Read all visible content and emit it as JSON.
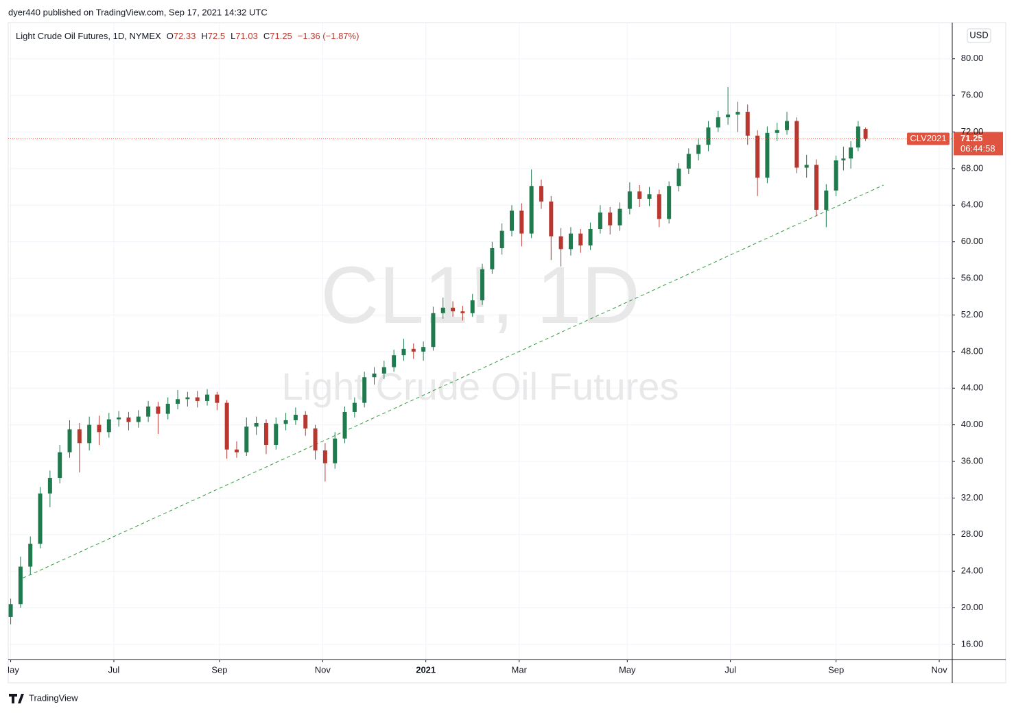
{
  "header": {
    "publisher": "dyer440 published on TradingView.com, Sep 17, 2021 14:32 UTC"
  },
  "footer": {
    "brand": "TradingView"
  },
  "chart_data": {
    "type": "candlestick",
    "title": "Light Crude Oil Futures, 1D, NYMEX",
    "ohlc_prefixes": [
      "O",
      "H",
      "L",
      "C"
    ],
    "change": "−1.36 (−1.87%)",
    "currency": "USD",
    "watermark_symbol": "CL1!, 1D",
    "watermark_name": "Light Crude Oil Futures",
    "price_tag_symbol": "CLV2021",
    "countdown": "06:44:58",
    "up_color": "#1f7a4d",
    "down_color": "#b8372e",
    "grid": true,
    "x": [
      0,
      4,
      8,
      12,
      16,
      20,
      24,
      28,
      32,
      36,
      40,
      44,
      48,
      52,
      56,
      60,
      64,
      68,
      72,
      76,
      80,
      84,
      88,
      92,
      96,
      100,
      104,
      108,
      112,
      116,
      120,
      124,
      128,
      132,
      136,
      140,
      144,
      148,
      152,
      156,
      160,
      164,
      168,
      172,
      176,
      180,
      184,
      188,
      192,
      196,
      200,
      204,
      208,
      212,
      216,
      220,
      224,
      228,
      232,
      236,
      240,
      244,
      248,
      252,
      256,
      260,
      264,
      268,
      272,
      276,
      280,
      284,
      288,
      292,
      296,
      300,
      304,
      308,
      312,
      316,
      320,
      324,
      328,
      332,
      336,
      339,
      342,
      345,
      348
    ],
    "open": [
      19.0,
      20.4,
      24.5,
      27.0,
      32.5,
      34.2,
      37.0,
      39.5,
      38.0,
      40.0,
      39.2,
      40.6,
      40.8,
      40.3,
      40.9,
      42.0,
      41.2,
      42.3,
      42.8,
      43.0,
      42.6,
      43.3,
      42.4,
      37.3,
      37.0,
      39.8,
      40.2,
      37.8,
      40.1,
      40.5,
      41.1,
      39.6,
      37.2,
      35.8,
      38.5,
      41.4,
      42.4,
      45.2,
      45.6,
      46.3,
      47.6,
      48.3,
      48.0,
      48.5,
      52.2,
      52.8,
      52.4,
      52.2,
      53.6,
      57.0,
      59.3,
      61.2,
      63.4,
      60.9,
      66.1,
      64.4,
      60.6,
      59.2,
      60.9,
      59.6,
      61.4,
      63.2,
      61.8,
      63.6,
      65.5,
      64.7,
      65.2,
      62.5,
      66.1,
      68.0,
      69.6,
      70.6,
      72.5,
      73.6,
      73.9,
      74.2,
      71.6,
      67.0,
      71.9,
      72.2,
      73.2,
      68.1,
      68.4,
      63.5,
      65.6,
      68.9,
      69.1,
      70.3,
      72.33
    ],
    "high": [
      21.0,
      25.6,
      27.8,
      33.2,
      35.0,
      37.8,
      40.5,
      40.2,
      40.9,
      41.0,
      41.3,
      41.5,
      41.4,
      41.6,
      42.6,
      42.5,
      43.0,
      43.8,
      43.6,
      43.7,
      43.9,
      43.6,
      42.7,
      38.2,
      40.8,
      40.9,
      40.6,
      40.8,
      41.3,
      41.9,
      41.5,
      40.0,
      38.0,
      39.2,
      42.0,
      43.0,
      45.8,
      46.3,
      47.0,
      48.2,
      49.4,
      48.9,
      49.1,
      52.9,
      53.9,
      53.5,
      53.0,
      54.3,
      57.6,
      60.0,
      62.0,
      64.0,
      64.2,
      67.9,
      66.8,
      65.0,
      61.5,
      61.6,
      61.4,
      62.1,
      64.0,
      63.8,
      64.3,
      66.5,
      66.2,
      66.0,
      65.7,
      66.6,
      68.6,
      70.2,
      71.3,
      73.2,
      74.3,
      76.9,
      75.3,
      75.0,
      72.2,
      72.6,
      73.0,
      74.2,
      73.6,
      69.5,
      69.0,
      66.3,
      69.4,
      70.4,
      71.0,
      73.2,
      72.5
    ],
    "low": [
      18.2,
      20.0,
      23.6,
      26.5,
      31.0,
      33.6,
      36.4,
      34.8,
      37.2,
      37.8,
      38.6,
      39.8,
      39.4,
      39.7,
      40.3,
      39.0,
      40.6,
      41.7,
      42.0,
      41.9,
      42.1,
      41.6,
      36.3,
      36.4,
      36.6,
      38.9,
      36.8,
      37.3,
      39.4,
      40.0,
      38.8,
      36.2,
      33.8,
      35.2,
      38.0,
      40.8,
      41.9,
      44.4,
      45.0,
      45.8,
      47.0,
      47.2,
      47.0,
      48.1,
      51.6,
      51.8,
      51.4,
      51.8,
      53.1,
      56.5,
      58.6,
      60.6,
      59.5,
      60.4,
      63.6,
      58.0,
      57.3,
      58.5,
      58.8,
      59.1,
      60.9,
      60.8,
      61.2,
      63.0,
      63.8,
      63.9,
      61.6,
      62.0,
      65.5,
      67.4,
      68.9,
      69.9,
      72.0,
      72.8,
      72.0,
      70.6,
      65.0,
      66.4,
      71.0,
      71.7,
      67.5,
      67.0,
      62.8,
      61.6,
      65.0,
      67.8,
      68.0,
      69.9,
      71.03
    ],
    "close": [
      20.4,
      24.5,
      27.0,
      32.5,
      34.2,
      37.0,
      39.5,
      38.0,
      40.0,
      39.2,
      40.6,
      40.8,
      40.3,
      40.9,
      42.0,
      41.2,
      42.3,
      42.8,
      43.0,
      42.6,
      43.3,
      42.4,
      37.3,
      37.0,
      39.8,
      40.2,
      37.8,
      40.1,
      40.5,
      41.1,
      39.6,
      37.2,
      35.8,
      38.5,
      41.4,
      42.4,
      45.2,
      45.6,
      46.3,
      47.6,
      48.3,
      48.0,
      48.5,
      52.2,
      52.8,
      52.4,
      52.2,
      53.6,
      57.0,
      59.3,
      61.2,
      63.4,
      60.9,
      66.1,
      64.4,
      60.6,
      59.2,
      60.9,
      59.6,
      61.4,
      63.2,
      61.8,
      63.6,
      65.5,
      64.7,
      65.2,
      62.5,
      66.1,
      68.0,
      69.6,
      70.6,
      72.5,
      73.6,
      73.9,
      74.2,
      71.6,
      67.0,
      71.9,
      72.2,
      73.2,
      68.1,
      68.4,
      63.5,
      65.6,
      68.9,
      69.1,
      70.3,
      72.6,
      71.25
    ],
    "trendline": {
      "x": [
        5,
        355.3
      ],
      "values": [
        23.25,
        66.2
      ],
      "color": "#2e9a3a"
    },
    "xlim": [
      -1,
      383.3
    ],
    "ylim": [
      14.35,
      83.8
    ],
    "xticks": [
      {
        "value": 0,
        "label": "May"
      },
      {
        "value": 42,
        "label": "Jul"
      },
      {
        "value": 85,
        "label": "Sep"
      },
      {
        "value": 127,
        "label": "Nov"
      },
      {
        "value": 169,
        "label": "2021"
      },
      {
        "value": 207,
        "label": "Mar"
      },
      {
        "value": 251,
        "label": "May"
      },
      {
        "value": 293,
        "label": "Jul"
      },
      {
        "value": 336,
        "label": "Sep"
      },
      {
        "value": 378,
        "label": "Nov"
      }
    ],
    "yticks": [
      {
        "value": 16,
        "label": "16.00"
      },
      {
        "value": 20,
        "label": "20.00"
      },
      {
        "value": 24,
        "label": "24.00"
      },
      {
        "value": 28,
        "label": "28.00"
      },
      {
        "value": 32,
        "label": "32.00"
      },
      {
        "value": 36,
        "label": "36.00"
      },
      {
        "value": 40,
        "label": "40.00"
      },
      {
        "value": 44,
        "label": "44.00"
      },
      {
        "value": 48,
        "label": "48.00"
      },
      {
        "value": 52,
        "label": "52.00"
      },
      {
        "value": 56,
        "label": "56.00"
      },
      {
        "value": 60,
        "label": "60.00"
      },
      {
        "value": 64,
        "label": "64.00"
      },
      {
        "value": 68,
        "label": "68.00"
      },
      {
        "value": 72,
        "label": "72.00"
      },
      {
        "value": 76,
        "label": "76.00"
      },
      {
        "value": 80,
        "label": "80.00"
      }
    ]
  }
}
